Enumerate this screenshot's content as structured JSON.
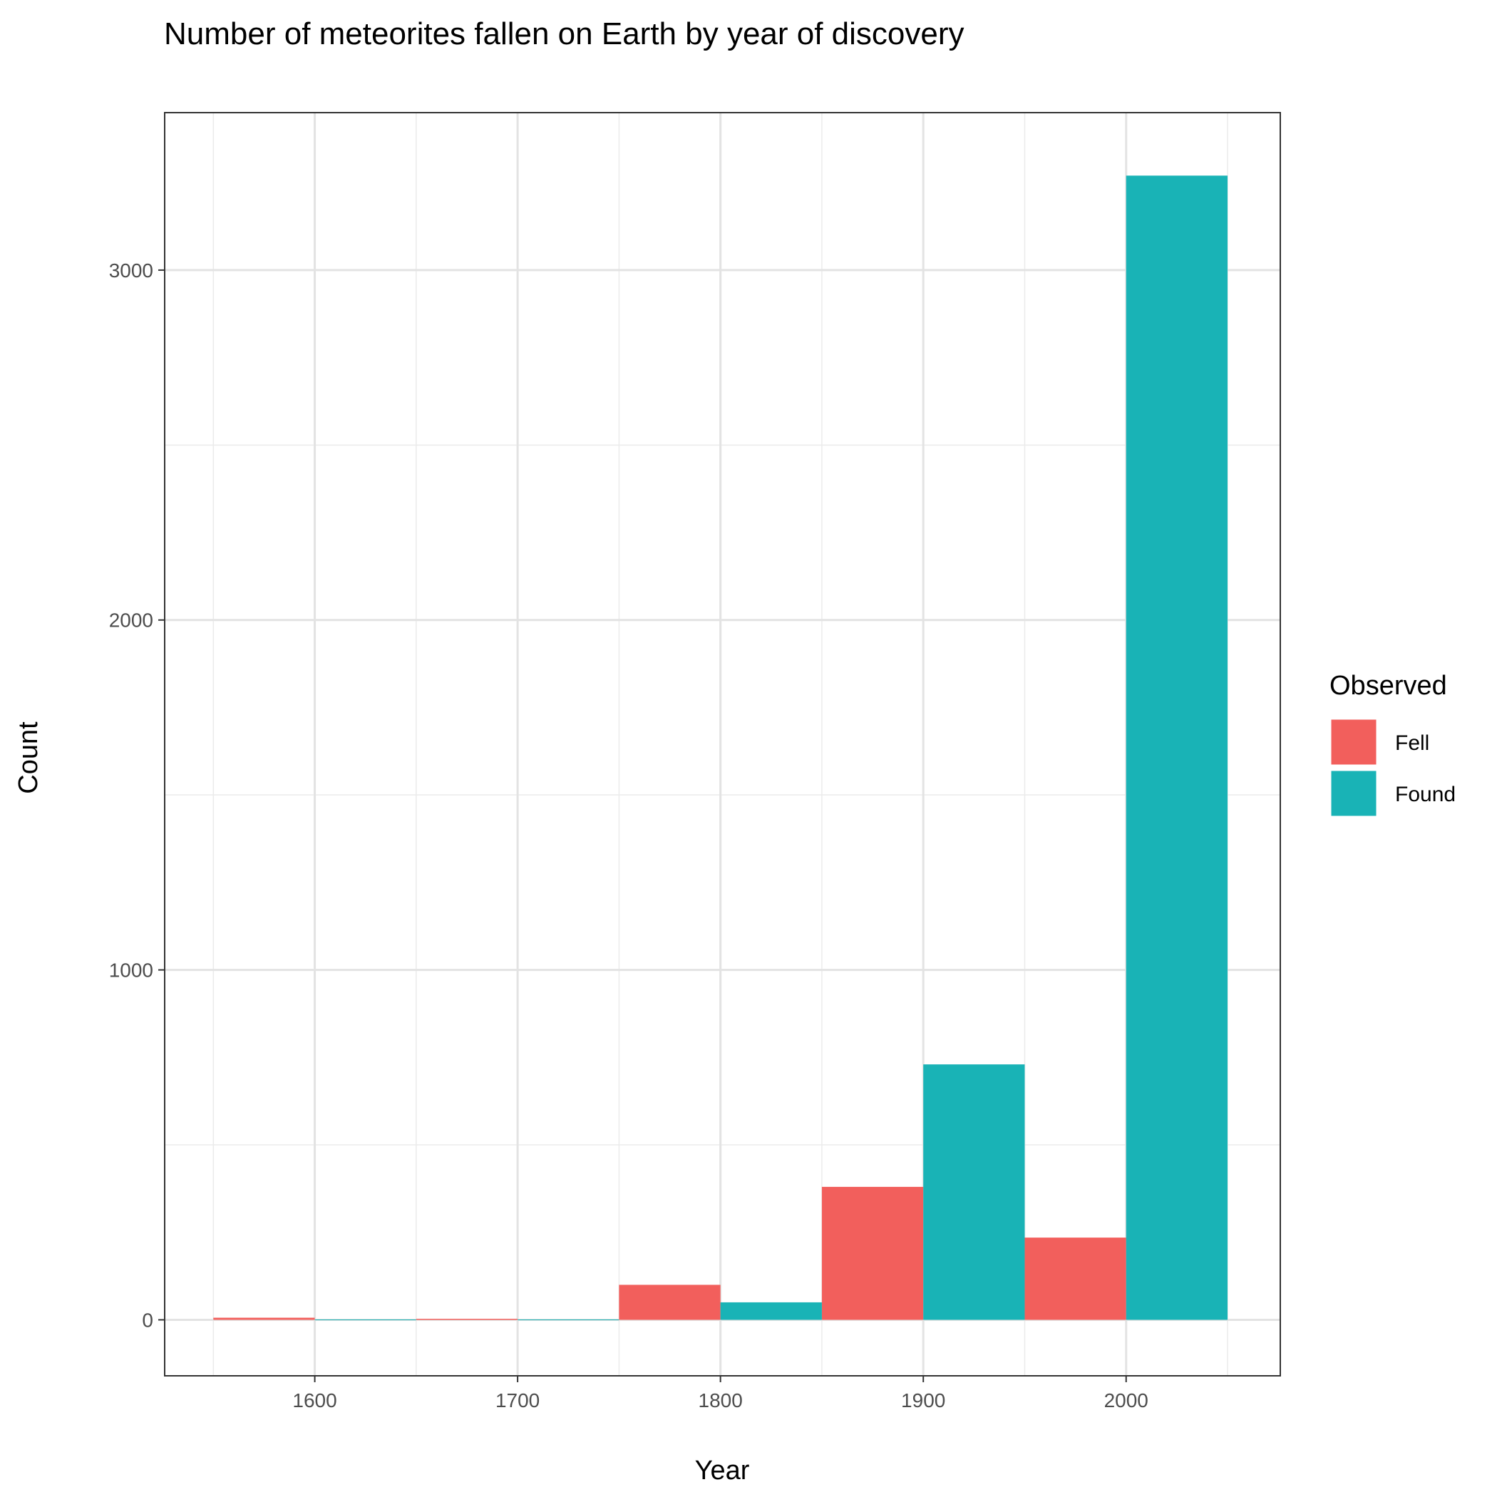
{
  "chart_data": {
    "type": "bar",
    "title": "Number of meteorites fallen on Earth by year of discovery",
    "xlabel": "Year",
    "ylabel": "Count",
    "bin_width": 100,
    "xlim": [
      1526,
      2076
    ],
    "ylim": [
      -160,
      3450
    ],
    "x_ticks": [
      1600,
      1700,
      1800,
      1900,
      2000
    ],
    "x_minor_ticks": [
      1550,
      1650,
      1750,
      1850,
      1950,
      2050
    ],
    "y_ticks": [
      0,
      1000,
      2000,
      3000
    ],
    "y_minor_ticks": [
      500,
      1500,
      2500
    ],
    "grid": true,
    "legend": {
      "title": "Observed",
      "position": "right",
      "entries": [
        "Fell",
        "Found"
      ]
    },
    "series": [
      {
        "name": "Fell",
        "color": "#F25F5C",
        "x": [
          1600,
          1700,
          1800,
          1900,
          2000
        ],
        "values": [
          6,
          3,
          100,
          380,
          235
        ]
      },
      {
        "name": "Found",
        "color": "#19B3B6",
        "x": [
          1600,
          1700,
          1800,
          1900,
          2000
        ],
        "values": [
          1,
          1,
          50,
          730,
          3270
        ]
      }
    ]
  }
}
